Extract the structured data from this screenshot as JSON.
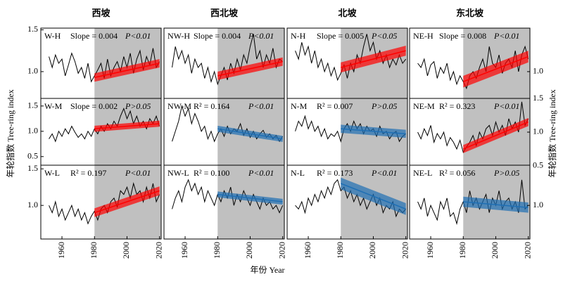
{
  "figure": {
    "x_label": "年份 Year",
    "y_label": "年轮指数 Tree-ring index",
    "y_label_right": "年轮指数 Tree-ring index",
    "x": [
      1952,
      1954,
      1956,
      1958,
      1960,
      1962,
      1964,
      1966,
      1968,
      1970,
      1972,
      1974,
      1976,
      1978,
      1980,
      1982,
      1984,
      1986,
      1988,
      1990,
      1992,
      1994,
      1996,
      1998,
      2000,
      2002,
      2004,
      2006,
      2008,
      2010,
      2012,
      2014,
      2016,
      2018,
      2020
    ],
    "xlim": [
      1947,
      2021
    ],
    "xticks": [
      1960,
      1980,
      2000,
      2020
    ]
  },
  "chart_data": [
    {
      "type": "line",
      "title": "西坡",
      "label": "W-H",
      "stat": "Slope = 0.004",
      "p": "P<0.01",
      "color": "#000000",
      "ylim": [
        0.68,
        1.52
      ],
      "yticks": [
        {
          "value": 1,
          "label": "1.0"
        },
        {
          "value": 1.5,
          "label": "1.5"
        }
      ],
      "values": [
        1.18,
        1.05,
        1.2,
        1.1,
        1.15,
        0.95,
        1.08,
        1.22,
        1.12,
        0.98,
        1.05,
        0.92,
        1.1,
        0.88,
        0.95,
        1.02,
        1.1,
        0.92,
        1.15,
        0.95,
        1.05,
        1.12,
        1.0,
        1.18,
        1.05,
        1.22,
        0.98,
        1.15,
        1.25,
        1.02,
        1.18,
        1.08,
        1.28,
        1.05,
        1.12
      ],
      "trend": {
        "color": "#ff0000",
        "x": [
          1980,
          2020
        ],
        "values": [
          0.93,
          1.1
        ],
        "lower": [
          0.88,
          1.05
        ],
        "upper": [
          0.98,
          1.15
        ]
      }
    },
    {
      "type": "line",
      "title": "西北坡",
      "label": "NW-H",
      "stat": "Slope = 0.004",
      "p": "P<0.01",
      "color": "#000000",
      "ylim": [
        0.68,
        1.52
      ],
      "values": [
        1.05,
        1.3,
        1.15,
        1.25,
        1.1,
        1.2,
        0.98,
        1.15,
        1.05,
        1.1,
        0.92,
        1.05,
        0.88,
        1.0,
        0.85,
        0.95,
        1.05,
        0.9,
        1.1,
        0.98,
        1.15,
        1.02,
        1.2,
        1.1,
        1.3,
        1.45,
        1.15,
        1.25,
        1.05,
        1.2,
        1.1,
        1.28,
        1.05,
        1.15,
        1.12
      ],
      "trend": {
        "color": "#ff0000",
        "x": [
          1980,
          2020
        ],
        "values": [
          0.95,
          1.12
        ],
        "lower": [
          0.9,
          1.07
        ],
        "upper": [
          1.0,
          1.17
        ]
      }
    },
    {
      "type": "line",
      "title": "北坡",
      "label": "N-H",
      "stat": "Slope = 0.005",
      "p": "P<0.05",
      "color": "#000000",
      "ylim": [
        0.68,
        1.52
      ],
      "values": [
        1.25,
        1.15,
        1.35,
        1.2,
        1.3,
        1.1,
        1.25,
        1.05,
        1.15,
        1.0,
        1.1,
        0.95,
        1.05,
        0.9,
        0.98,
        1.08,
        0.92,
        1.1,
        1.0,
        1.2,
        1.1,
        1.3,
        1.45,
        1.25,
        1.35,
        1.15,
        1.25,
        1.1,
        1.2,
        1.05,
        1.15,
        1.08,
        1.2,
        1.1,
        1.15
      ],
      "trend": {
        "color": "#ff0000",
        "x": [
          1980,
          2020
        ],
        "values": [
          1.05,
          1.25
        ],
        "lower": [
          0.99,
          1.19
        ],
        "upper": [
          1.11,
          1.31
        ]
      }
    },
    {
      "type": "line",
      "title": "东北坡",
      "label": "NE-H",
      "stat": "Slope = 0.008",
      "p": "P<0.01",
      "color": "#000000",
      "ylim": [
        0.68,
        1.52
      ],
      "yticks": [
        {
          "value": 1,
          "label": "1.0"
        }
      ],
      "values": [
        1.1,
        1.05,
        1.15,
        0.95,
        1.08,
        1.12,
        0.92,
        1.05,
        0.98,
        1.1,
        0.9,
        1.0,
        0.85,
        0.95,
        0.88,
        0.8,
        0.95,
        1.0,
        0.92,
        1.05,
        1.15,
        1.0,
        1.3,
        1.1,
        1.05,
        1.2,
        0.98,
        1.1,
        1.15,
        1.05,
        1.25,
        1.0,
        1.2,
        1.3,
        1.15
      ],
      "trend": {
        "color": "#ff0000",
        "x": [
          1980,
          2020
        ],
        "values": [
          0.88,
          1.18
        ],
        "lower": [
          0.81,
          1.11
        ],
        "upper": [
          0.95,
          1.25
        ]
      }
    },
    {
      "type": "line",
      "label": "W-M",
      "stat": "Slope = 0.002",
      "p": "P>0.05",
      "color": "#000000",
      "ylim": [
        0.33,
        1.65
      ],
      "yticks": [
        {
          "value": 0.5,
          "label": "0.5"
        },
        {
          "value": 1,
          "label": "1.0"
        },
        {
          "value": 1.5,
          "label": "1.5"
        }
      ],
      "values": [
        0.85,
        0.95,
        0.8,
        1.0,
        0.9,
        1.05,
        0.95,
        1.1,
        0.98,
        0.88,
        0.95,
        0.85,
        1.0,
        0.9,
        1.05,
        0.95,
        1.1,
        1.0,
        1.15,
        1.05,
        1.2,
        1.1,
        1.3,
        1.45,
        1.25,
        1.4,
        1.15,
        1.3,
        1.1,
        1.2,
        1.05,
        1.25,
        1.15,
        1.3,
        1.1
      ],
      "trend": {
        "color": "#ff0000",
        "x": [
          1980,
          2020
        ],
        "values": [
          1.05,
          1.15
        ],
        "lower": [
          0.99,
          1.09
        ],
        "upper": [
          1.11,
          1.21
        ]
      }
    },
    {
      "type": "line",
      "label": "NW-M",
      "stat": "R² = 0.164",
      "p": "P<0.01",
      "color": "#000000",
      "ylim": [
        0.33,
        1.65
      ],
      "values": [
        0.8,
        1.0,
        1.2,
        1.5,
        1.3,
        1.45,
        1.15,
        1.35,
        1.2,
        1.0,
        1.1,
        0.85,
        1.0,
        0.8,
        0.95,
        1.05,
        0.9,
        1.1,
        0.95,
        1.05,
        1.0,
        1.15,
        0.92,
        1.05,
        0.88,
        1.0,
        0.85,
        0.95,
        1.02,
        0.88,
        0.95,
        0.85,
        0.92,
        0.8,
        0.9
      ],
      "trend": {
        "color": "#1f6fb4",
        "x": [
          1980,
          2020
        ],
        "values": [
          1.05,
          0.85
        ],
        "lower": [
          0.99,
          0.79
        ],
        "upper": [
          1.11,
          0.91
        ]
      }
    },
    {
      "type": "line",
      "label": "N-M",
      "stat": "R² = 0.007",
      "p": "P>0.05",
      "color": "#000000",
      "ylim": [
        0.33,
        1.65
      ],
      "values": [
        1.0,
        1.2,
        1.1,
        1.3,
        1.05,
        1.2,
        1.0,
        1.1,
        0.9,
        1.05,
        0.85,
        0.95,
        0.9,
        1.0,
        0.8,
        1.05,
        1.15,
        1.0,
        1.2,
        1.05,
        1.15,
        0.95,
        1.1,
        1.0,
        1.05,
        0.9,
        1.1,
        0.95,
        1.0,
        0.85,
        0.95,
        1.0,
        0.8,
        0.9,
        0.95
      ],
      "trend": {
        "color": "#1f6fb4",
        "x": [
          1980,
          2020
        ],
        "values": [
          1.05,
          0.95
        ],
        "lower": [
          0.97,
          0.87
        ],
        "upper": [
          1.13,
          1.03
        ]
      }
    },
    {
      "type": "line",
      "label": "NE-M",
      "stat": "R² = 0.323",
      "p": "P<0.01",
      "color": "#000000",
      "ylim": [
        0.51,
        1.5
      ],
      "yticks": [
        {
          "value": 0.5,
          "label": "0.5"
        },
        {
          "value": 1,
          "label": "1.0"
        },
        {
          "value": 1.5,
          "label": "1.5"
        }
      ],
      "values": [
        1.0,
        0.9,
        1.05,
        0.95,
        1.1,
        0.85,
        0.98,
        0.9,
        1.0,
        0.8,
        0.92,
        0.85,
        0.75,
        0.88,
        0.7,
        0.78,
        0.85,
        0.95,
        0.8,
        1.0,
        0.9,
        1.05,
        1.1,
        0.95,
        1.15,
        1.0,
        1.1,
        0.95,
        1.2,
        1.05,
        1.15,
        1.0,
        1.45,
        1.1,
        1.2
      ],
      "trend": {
        "color": "#ff0000",
        "x": [
          1980,
          2020
        ],
        "values": [
          0.75,
          1.15
        ],
        "lower": [
          0.69,
          1.09
        ],
        "upper": [
          0.81,
          1.21
        ]
      }
    },
    {
      "type": "line",
      "label": "W-L",
      "stat": "R² = 0.197",
      "p": "P<0.01",
      "color": "#000000",
      "ylim": [
        0.54,
        1.55
      ],
      "yticks": [
        {
          "value": 1,
          "label": "1.0"
        },
        {
          "value": 1.5,
          "label": "1.5"
        }
      ],
      "values": [
        1.0,
        0.9,
        1.05,
        0.85,
        0.95,
        0.8,
        0.9,
        1.0,
        0.85,
        0.95,
        0.8,
        0.9,
        0.75,
        0.85,
        0.92,
        0.8,
        0.95,
        1.0,
        0.9,
        1.05,
        1.1,
        0.98,
        1.2,
        1.15,
        1.25,
        1.1,
        1.3,
        1.15,
        1.2,
        1.05,
        1.25,
        1.1,
        1.3,
        1.05,
        1.15
      ],
      "trend": {
        "color": "#ff0000",
        "x": [
          1980,
          2020
        ],
        "values": [
          0.9,
          1.2
        ],
        "lower": [
          0.84,
          1.14
        ],
        "upper": [
          0.96,
          1.26
        ]
      }
    },
    {
      "type": "line",
      "label": "NW-L",
      "stat": "R² = 0.100",
      "p": "P<0.01",
      "color": "#000000",
      "ylim": [
        0.54,
        1.55
      ],
      "values": [
        0.95,
        1.1,
        1.2,
        1.05,
        1.25,
        1.35,
        1.2,
        1.3,
        1.15,
        1.25,
        1.05,
        1.2,
        1.1,
        1.0,
        1.15,
        1.05,
        1.2,
        1.1,
        1.25,
        1.0,
        1.15,
        1.05,
        1.2,
        1.1,
        1.0,
        1.15,
        1.05,
        0.95,
        1.1,
        1.0,
        1.05,
        0.95,
        1.0,
        0.9,
        1.0
      ],
      "trend": {
        "color": "#1f6fb4",
        "x": [
          1980,
          2020
        ],
        "values": [
          1.15,
          1.05
        ],
        "lower": [
          1.11,
          1.01
        ],
        "upper": [
          1.19,
          1.09
        ]
      }
    },
    {
      "type": "line",
      "label": "N-L",
      "stat": "R² = 0.173",
      "p": "P<0.01",
      "color": "#000000",
      "ylim": [
        0.54,
        1.55
      ],
      "values": [
        1.0,
        0.95,
        1.05,
        0.9,
        1.1,
        1.0,
        1.15,
        1.05,
        1.2,
        1.1,
        1.25,
        1.15,
        1.3,
        1.35,
        1.2,
        1.25,
        1.1,
        1.2,
        1.05,
        1.15,
        1.0,
        1.1,
        0.95,
        1.05,
        1.15,
        1.0,
        1.1,
        0.9,
        1.0,
        0.95,
        1.05,
        0.85,
        0.95,
        0.9,
        0.95
      ],
      "trend": {
        "color": "#1f6fb4",
        "x": [
          1980,
          2020
        ],
        "values": [
          1.3,
          0.95
        ],
        "lower": [
          1.22,
          0.87
        ],
        "upper": [
          1.38,
          1.03
        ]
      }
    },
    {
      "type": "line",
      "label": "NE-L",
      "stat": "R² = 0.056",
      "p": "P>0.05",
      "color": "#000000",
      "ylim": [
        0.54,
        1.55
      ],
      "yticks": [
        {
          "value": 1,
          "label": "1.0"
        }
      ],
      "values": [
        1.05,
        0.95,
        1.1,
        0.85,
        1.0,
        0.9,
        0.8,
        1.05,
        0.95,
        1.1,
        0.85,
        0.9,
        0.75,
        0.95,
        1.05,
        0.9,
        1.2,
        1.0,
        1.1,
        0.95,
        1.05,
        1.15,
        0.9,
        1.1,
        1.0,
        1.2,
        0.95,
        1.05,
        1.1,
        0.95,
        1.05,
        0.9,
        1.35,
        0.95,
        1.0
      ],
      "trend": {
        "color": "#1f6fb4",
        "x": [
          1980,
          2020
        ],
        "values": [
          1.05,
          0.97
        ],
        "lower": [
          0.98,
          0.9
        ],
        "upper": [
          1.12,
          1.04
        ]
      }
    }
  ]
}
